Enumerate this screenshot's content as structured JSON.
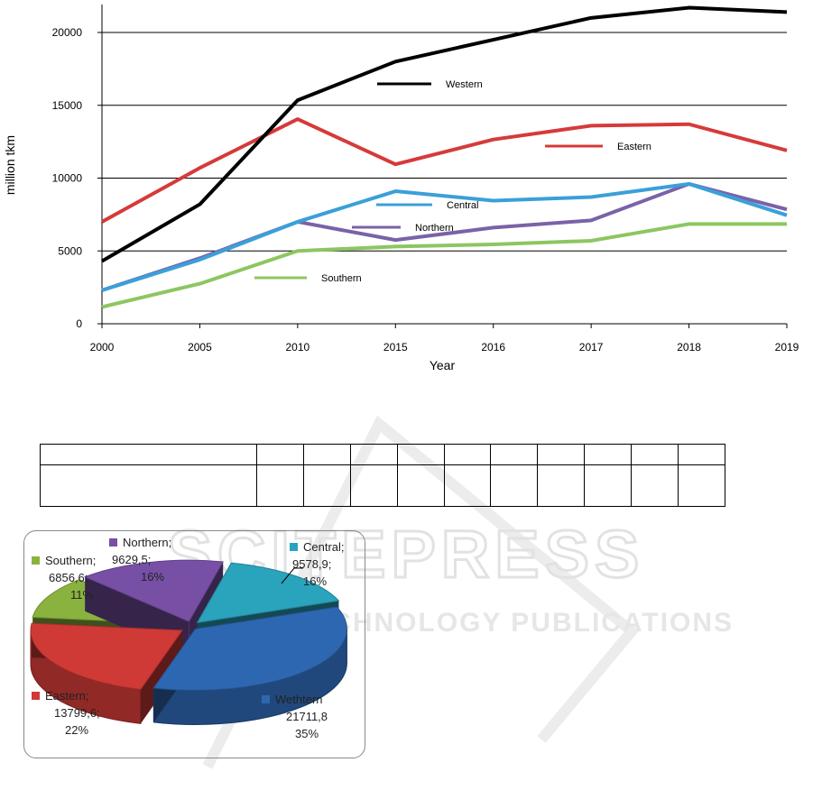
{
  "watermark": {
    "logo": "SCITEPRESS",
    "subtitle": "SCIENCE AND TECHNOLOGY PUBLICATIONS"
  },
  "chart_data": [
    {
      "type": "line",
      "title": "",
      "xlabel": "Year",
      "ylabel": "million tkm",
      "categories": [
        "2000",
        "2005",
        "2010",
        "2015",
        "2016",
        "2017",
        "2018",
        "2019"
      ],
      "ylim": [
        0,
        22000
      ],
      "yticks": [
        "0",
        "5000",
        "10000",
        "15000",
        "20000"
      ],
      "grid": true,
      "legend": "inline",
      "series": [
        {
          "name": "Western",
          "color": "#000000",
          "values": [
            4300,
            8200,
            15350,
            18000,
            19500,
            21000,
            21700,
            21400
          ]
        },
        {
          "name": "Eastern",
          "color": "#d63a3a",
          "values": [
            7000,
            10700,
            14050,
            10950,
            12650,
            13600,
            13700,
            11900
          ]
        },
        {
          "name": "Central",
          "color": "#3aa0d8",
          "values": [
            2300,
            4400,
            7000,
            9100,
            8450,
            8700,
            9600,
            7450
          ]
        },
        {
          "name": "Northern",
          "color": "#7a62a8",
          "values": [
            2300,
            4500,
            7000,
            5750,
            6600,
            7100,
            9600,
            7850
          ]
        },
        {
          "name": "Southern",
          "color": "#8cc660",
          "values": [
            1150,
            2750,
            5000,
            5300,
            5450,
            5700,
            6850,
            6850
          ]
        }
      ]
    },
    {
      "type": "pie",
      "slices": [
        {
          "name": "Central;",
          "value": "9578,9;",
          "pct": "16%",
          "num": 9578.9,
          "color": "#2aa3bd"
        },
        {
          "name": "Wethtern",
          "value": "21711,8",
          "pct": "35%",
          "num": 21711.8,
          "color": "#2e67b1"
        },
        {
          "name": "Eastern;",
          "value": "13799,6;",
          "pct": "22%",
          "num": 13799.6,
          "color": "#cf3a36"
        },
        {
          "name": "Southern;",
          "value": "6856,6;",
          "pct": "11%",
          "num": 6856.6,
          "color": "#8ab23e"
        },
        {
          "name": "Northern;",
          "value": "9629,5;",
          "pct": "16%",
          "num": 9629.5,
          "color": "#7750a6"
        }
      ]
    }
  ],
  "table": {
    "rows": 2,
    "cols": 11
  }
}
